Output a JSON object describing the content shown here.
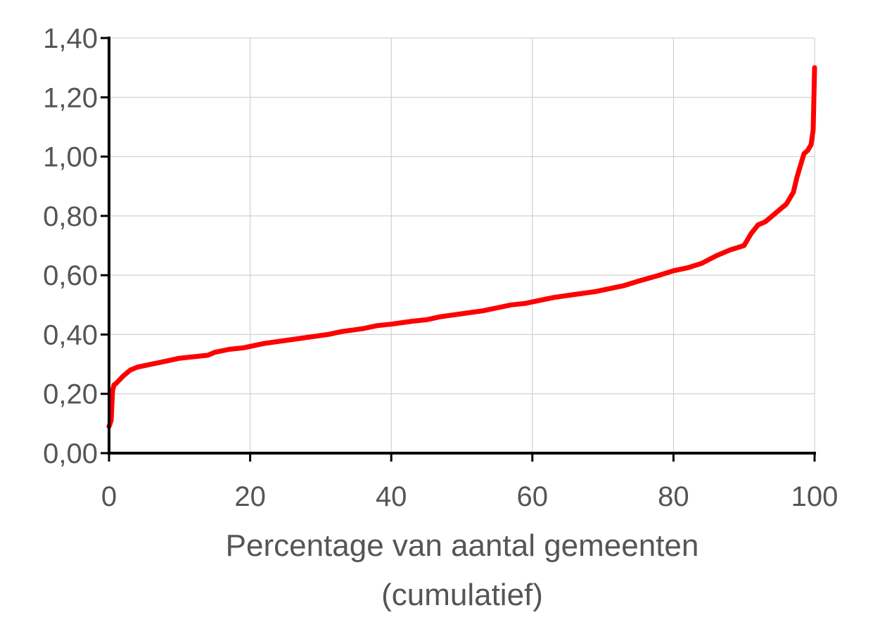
{
  "chart_data": {
    "type": "line",
    "title": "",
    "xlabel_lines": [
      "Percentage van aantal gemeenten",
      "(cumulatief)"
    ],
    "ylabel": "",
    "xlim": [
      0,
      100
    ],
    "ylim": [
      0,
      1.4
    ],
    "xticks": [
      0,
      20,
      40,
      60,
      80,
      100
    ],
    "xtick_labels": [
      "0",
      "20",
      "40",
      "60",
      "80",
      "100"
    ],
    "yticks": [
      0,
      0.2,
      0.4,
      0.6,
      0.8,
      1.0,
      1.2,
      1.4
    ],
    "ytick_labels": [
      "0,00",
      "0,20",
      "0,40",
      "0,60",
      "0,80",
      "1,00",
      "1,20",
      "1,40"
    ],
    "grid": true,
    "legend": "none",
    "series": [
      {
        "color": "#ff0000",
        "x": [
          0,
          0.3,
          0.5,
          0.7,
          1,
          2,
          3,
          4,
          5,
          6,
          7,
          8,
          10,
          12,
          14,
          15,
          17,
          19,
          20,
          22,
          25,
          28,
          31,
          33,
          36,
          38,
          40,
          43,
          45,
          47,
          50,
          53,
          55,
          57,
          59,
          60,
          63,
          66,
          69,
          71,
          73,
          75,
          78,
          80,
          82,
          84,
          86,
          88,
          90,
          91,
          92,
          93,
          94,
          95,
          96,
          96.5,
          97,
          97.5,
          98,
          98.5,
          99,
          99.5,
          99.8,
          100
        ],
        "y": [
          0.09,
          0.11,
          0.21,
          0.23,
          0.235,
          0.26,
          0.28,
          0.29,
          0.295,
          0.3,
          0.305,
          0.31,
          0.32,
          0.325,
          0.33,
          0.34,
          0.35,
          0.355,
          0.36,
          0.37,
          0.38,
          0.39,
          0.4,
          0.41,
          0.42,
          0.43,
          0.435,
          0.445,
          0.45,
          0.46,
          0.47,
          0.48,
          0.49,
          0.5,
          0.505,
          0.51,
          0.525,
          0.535,
          0.545,
          0.555,
          0.565,
          0.58,
          0.6,
          0.615,
          0.625,
          0.64,
          0.665,
          0.685,
          0.7,
          0.74,
          0.77,
          0.78,
          0.8,
          0.82,
          0.84,
          0.86,
          0.88,
          0.93,
          0.97,
          1.01,
          1.02,
          1.04,
          1.09,
          1.3
        ]
      }
    ]
  }
}
